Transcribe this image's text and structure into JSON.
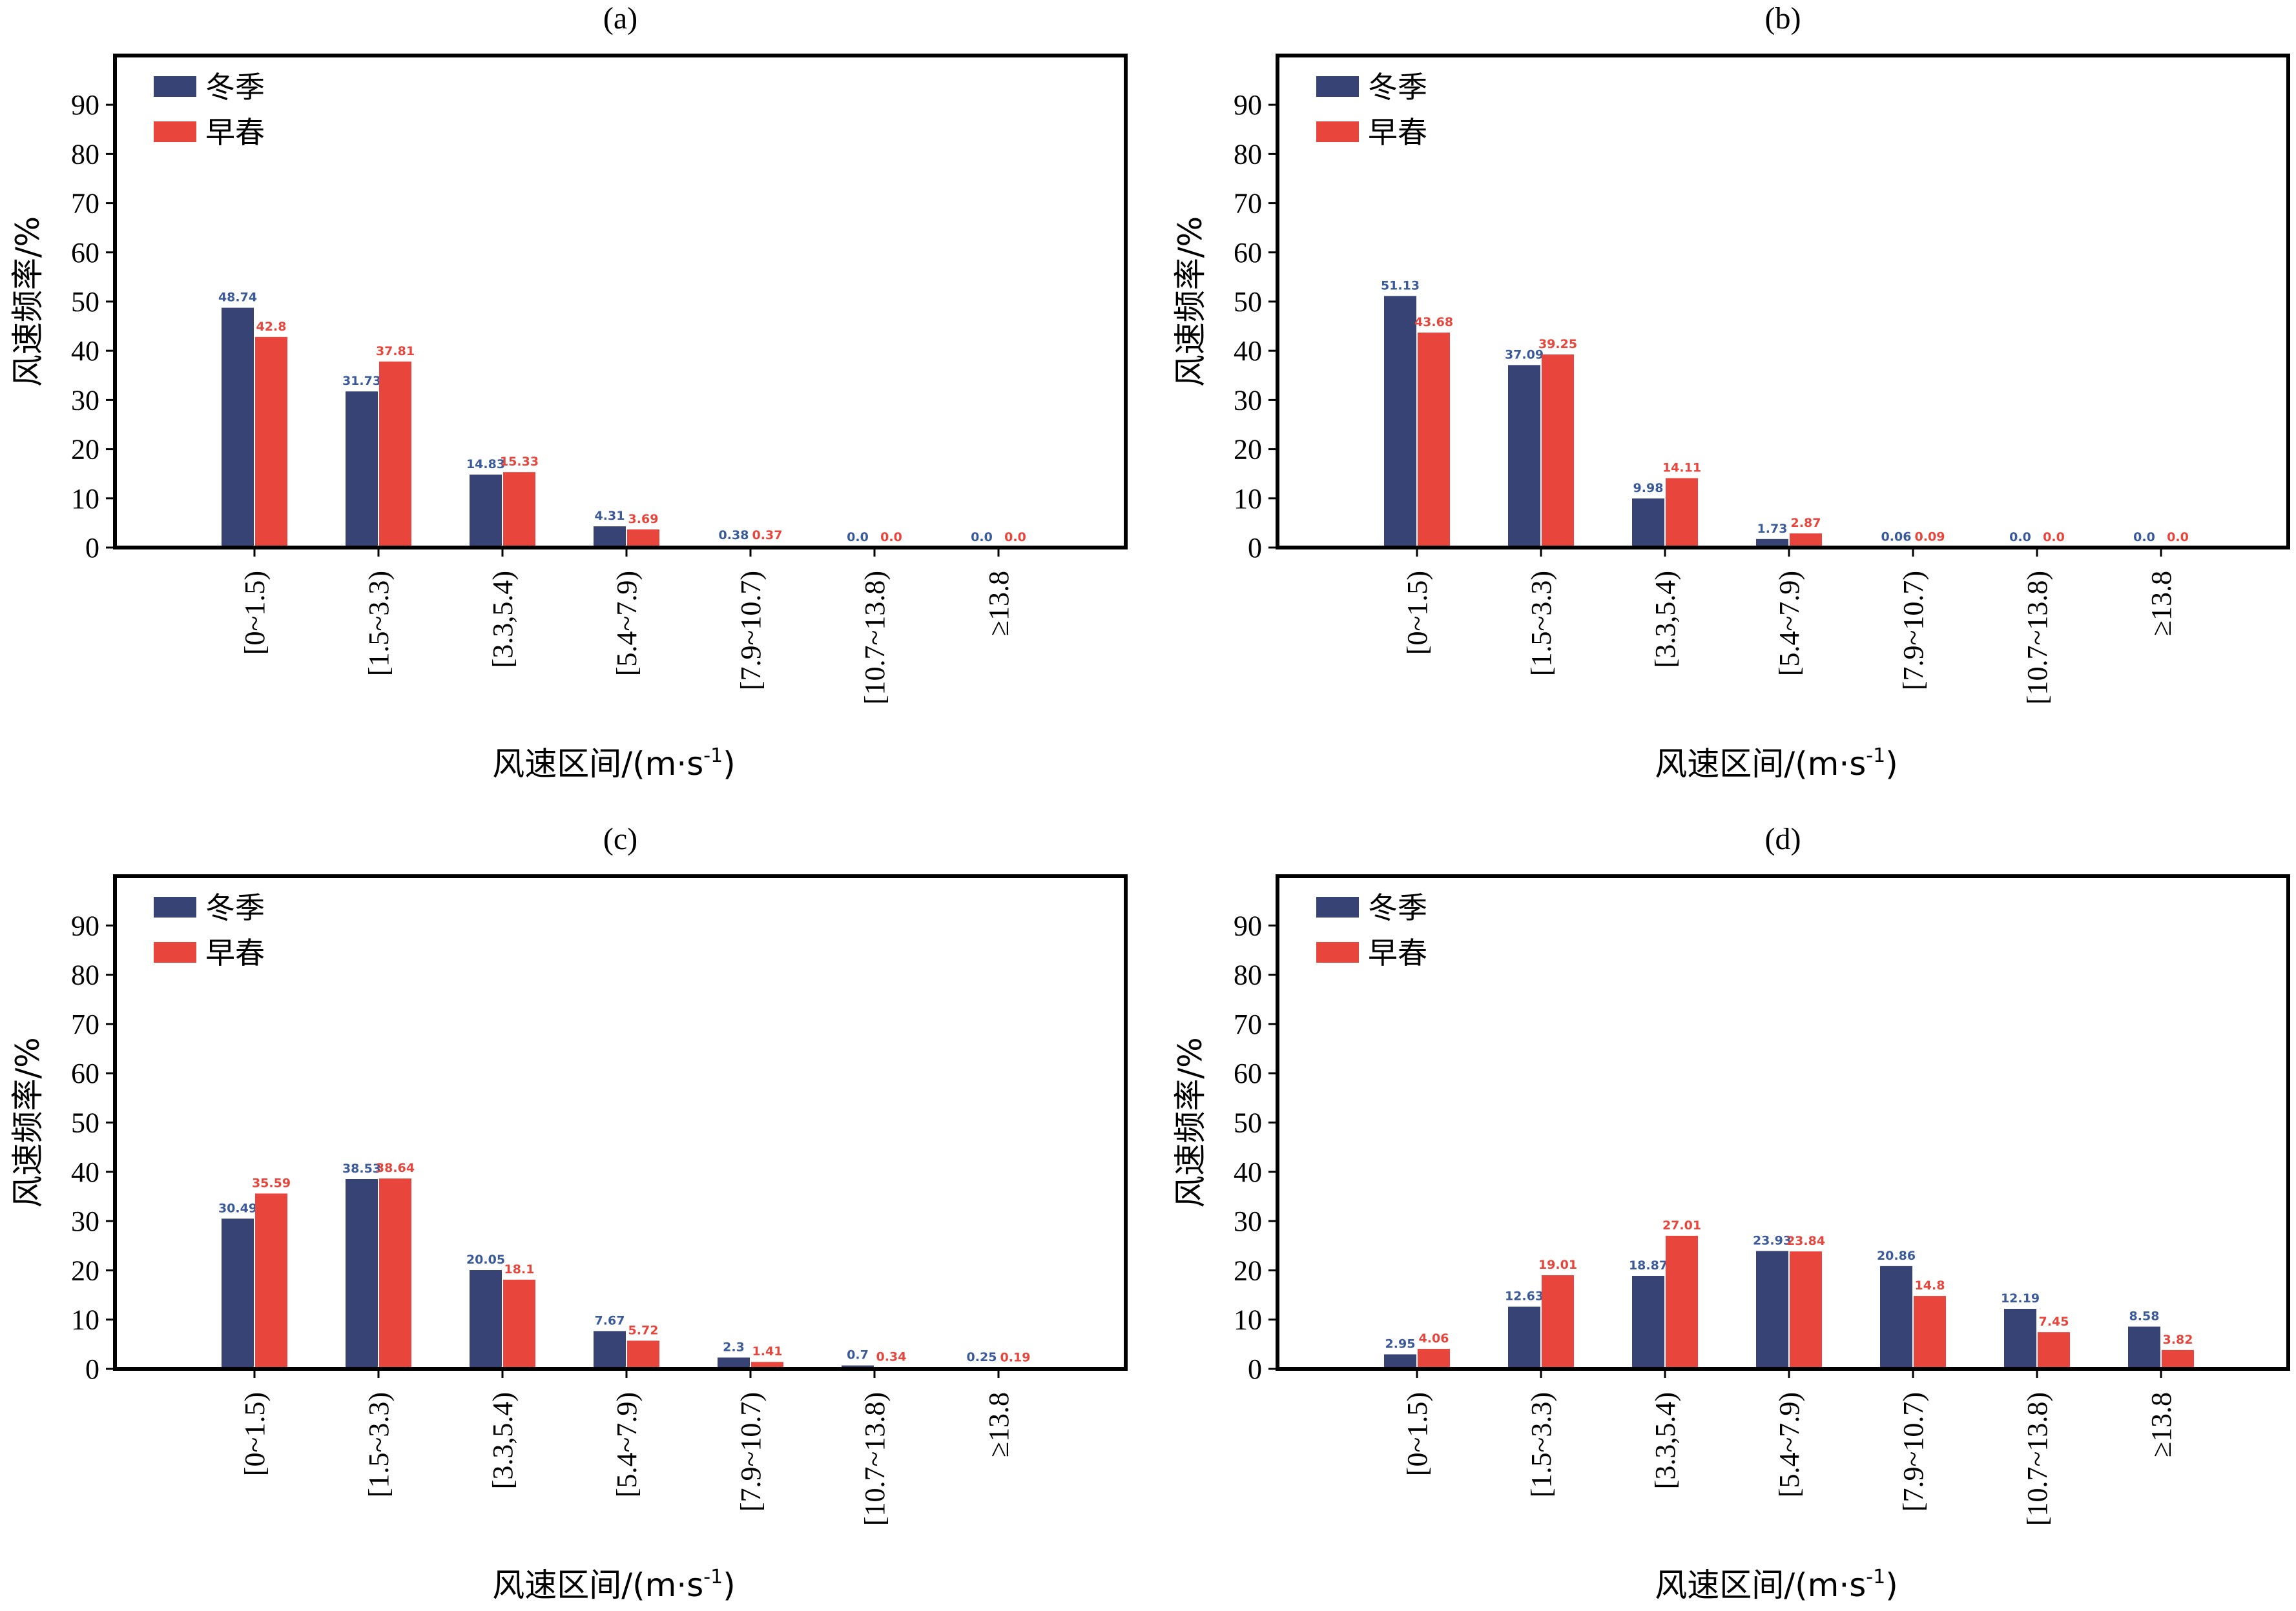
{
  "colors": {
    "winter": "#364374",
    "spring": "#E8453C",
    "winter_label": "#3A5A9A",
    "spring_label": "#E8453C"
  },
  "common": {
    "ylabel": "风速频率/%",
    "xlabel_main": "风速区间/(m·s",
    "xlabel_sup": "-1",
    "xlabel_close": ")",
    "categories": [
      "[0~1.5)",
      "[1.5~3.3)",
      "[3.3,5.4)",
      "[5.4~7.9)",
      "[7.9~10.7)",
      "[10.7~13.8)",
      "≥13.8"
    ],
    "yticks": [
      "0",
      "10",
      "20",
      "30",
      "40",
      "50",
      "60",
      "70",
      "80",
      "90"
    ],
    "legend": [
      "冬季",
      "早春"
    ]
  },
  "chart_data": [
    {
      "type": "bar",
      "title": "(a)",
      "categories": [
        "[0~1.5)",
        "[1.5~3.3)",
        "[3.3,5.4)",
        "[5.4~7.9)",
        "[7.9~10.7)",
        "[10.7~13.8)",
        "≥13.8"
      ],
      "series": [
        {
          "name": "冬季",
          "values": [
            48.74,
            31.73,
            14.83,
            4.31,
            0.38,
            0.0,
            0.0
          ],
          "labels": [
            "48.74",
            "31.73",
            "14.83",
            "4.31",
            "0.38",
            "0.0",
            "0.0"
          ]
        },
        {
          "name": "早春",
          "values": [
            42.8,
            37.81,
            15.33,
            3.69,
            0.37,
            0.0,
            0.0
          ],
          "labels": [
            "42.8",
            "37.81",
            "15.33",
            "3.69",
            "0.37",
            "0.0",
            "0.0"
          ]
        }
      ],
      "xlabel": "风速区间/(m·s-1)",
      "ylabel": "风速频率/%",
      "ylim": [
        0,
        100
      ],
      "legend_position": "top-left",
      "grid": false
    },
    {
      "type": "bar",
      "title": "(b)",
      "categories": [
        "[0~1.5)",
        "[1.5~3.3)",
        "[3.3,5.4)",
        "[5.4~7.9)",
        "[7.9~10.7)",
        "[10.7~13.8)",
        "≥13.8"
      ],
      "series": [
        {
          "name": "冬季",
          "values": [
            51.13,
            37.09,
            9.98,
            1.73,
            0.06,
            0.0,
            0.0
          ],
          "labels": [
            "51.13",
            "37.09",
            "9.98",
            "1.73",
            "0.06",
            "0.0",
            "0.0"
          ]
        },
        {
          "name": "早春",
          "values": [
            43.68,
            39.25,
            14.11,
            2.87,
            0.09,
            0.0,
            0.0
          ],
          "labels": [
            "43.68",
            "39.25",
            "14.11",
            "2.87",
            "0.09",
            "0.0",
            "0.0"
          ]
        }
      ],
      "xlabel": "风速区间/(m·s-1)",
      "ylabel": "风速频率/%",
      "ylim": [
        0,
        100
      ],
      "legend_position": "top-left",
      "grid": false
    },
    {
      "type": "bar",
      "title": "(c)",
      "categories": [
        "[0~1.5)",
        "[1.5~3.3)",
        "[3.3,5.4)",
        "[5.4~7.9)",
        "[7.9~10.7)",
        "[10.7~13.8)",
        "≥13.8"
      ],
      "series": [
        {
          "name": "冬季",
          "values": [
            30.49,
            38.53,
            20.05,
            7.67,
            2.3,
            0.7,
            0.25
          ],
          "labels": [
            "30.49",
            "38.53",
            "20.05",
            "7.67",
            "2.3",
            "0.7",
            "0.25"
          ]
        },
        {
          "name": "早春",
          "values": [
            35.59,
            38.64,
            18.1,
            5.72,
            1.41,
            0.34,
            0.19
          ],
          "labels": [
            "35.59",
            "38.64",
            "18.1",
            "5.72",
            "1.41",
            "0.34",
            "0.19"
          ]
        }
      ],
      "xlabel": "风速区间/(m·s-1)",
      "ylabel": "风速频率/%",
      "ylim": [
        0,
        100
      ],
      "legend_position": "top-left",
      "grid": false
    },
    {
      "type": "bar",
      "title": "(d)",
      "categories": [
        "[0~1.5)",
        "[1.5~3.3)",
        "[3.3,5.4)",
        "[5.4~7.9)",
        "[7.9~10.7)",
        "[10.7~13.8)",
        "≥13.8"
      ],
      "series": [
        {
          "name": "冬季",
          "values": [
            2.95,
            12.63,
            18.87,
            23.93,
            20.86,
            12.19,
            8.58
          ],
          "labels": [
            "2.95",
            "12.63",
            "18.87",
            "23.93",
            "20.86",
            "12.19",
            "8.58"
          ]
        },
        {
          "name": "早春",
          "values": [
            4.06,
            19.01,
            27.01,
            23.84,
            14.8,
            7.45,
            3.82
          ],
          "labels": [
            "4.06",
            "19.01",
            "27.01",
            "23.84",
            "14.8",
            "7.45",
            "3.82"
          ]
        }
      ],
      "xlabel": "风速区间/(m·s-1)",
      "ylabel": "风速频率/%",
      "ylim": [
        0,
        100
      ],
      "legend_position": "top-left",
      "grid": false
    }
  ]
}
